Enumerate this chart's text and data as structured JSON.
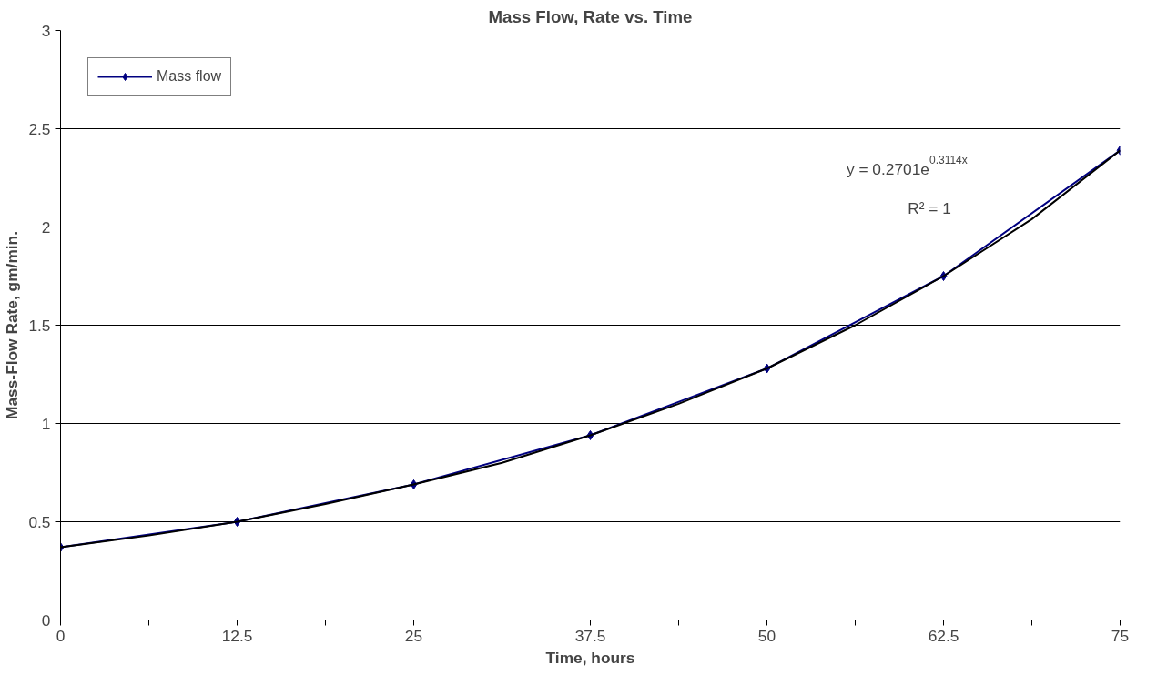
{
  "chart_data": {
    "type": "line",
    "title": "Mass Flow, Rate vs. Time",
    "xlabel": "Time, hours",
    "ylabel": "Mass-Flow Rate, gm/min.",
    "x": [
      0,
      12.5,
      25,
      37.5,
      50,
      62.5,
      75
    ],
    "series": [
      {
        "name": "Mass flow",
        "color": "#000080",
        "values": [
          0.37,
          0.5,
          0.69,
          0.94,
          1.28,
          1.75,
          2.39
        ],
        "marker": "diamond"
      },
      {
        "type": "line",
        "color": "#000000",
        "marker": "none",
        "x": [
          0,
          6.25,
          12.5,
          18.75,
          25,
          31.25,
          37.5,
          43.75,
          50,
          56.25,
          62.5,
          68.75,
          75
        ],
        "values": [
          0.37,
          0.43,
          0.5,
          0.59,
          0.69,
          0.8,
          0.94,
          1.1,
          1.28,
          1.5,
          1.75,
          2.04,
          2.39
        ]
      }
    ],
    "xlim": [
      0,
      75
    ],
    "xticks": [
      0,
      {
        "value": 6.25,
        "label": null
      },
      12.5,
      {
        "value": 18.75,
        "label": null
      },
      25,
      {
        "value": 31.25,
        "label": null
      },
      37.5,
      {
        "value": 43.75,
        "label": null
      },
      50,
      {
        "value": 56.25,
        "label": null
      },
      62.5,
      {
        "value": 68.75,
        "label": null
      },
      75
    ],
    "ylim": [
      0,
      3
    ],
    "yticks": [
      0,
      0.5,
      1,
      1.5,
      2,
      2.5,
      3
    ],
    "grid": "y",
    "legend": "top left",
    "line_style": "solid",
    "annotations": [
      "y = 0.2701e$^{0.3114x}$",
      "R² = 1"
    ]
  }
}
